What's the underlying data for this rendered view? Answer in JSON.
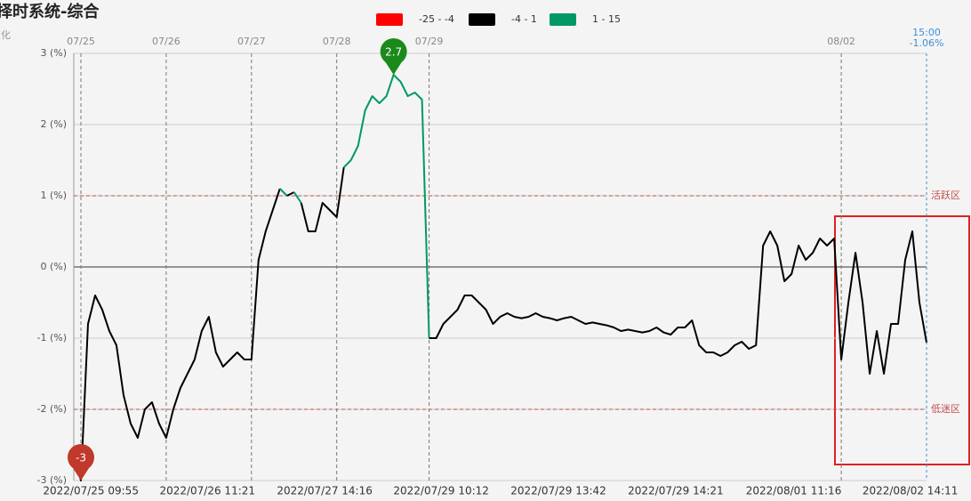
{
  "chart_data": {
    "type": "line",
    "title": "择时系统-综合",
    "ylabel": "变化",
    "legend": [
      {
        "name": "-25 - -4",
        "color": "#ff0000",
        "range": [
          -25,
          -4
        ]
      },
      {
        "name": "-4 - 1",
        "color": "#000000",
        "range": [
          -4,
          1
        ]
      },
      {
        "name": "1 - 15",
        "color": "#009966",
        "range": [
          1,
          15
        ]
      }
    ],
    "values": [
      -2.6,
      -3,
      -0.8,
      -0.4,
      -0.6,
      -0.9,
      -1.1,
      -1.8,
      -2.2,
      -2.4,
      -2.0,
      -1.9,
      -2.2,
      -2.4,
      -2.0,
      -1.7,
      -1.5,
      -1.3,
      -0.9,
      -0.7,
      -1.2,
      -1.4,
      -1.3,
      -1.2,
      -1.3,
      -1.3,
      0.1,
      0.5,
      0.8,
      1.1,
      1.0,
      1.05,
      0.9,
      0.5,
      0.5,
      0.9,
      0.8,
      0.7,
      1.4,
      1.5,
      1.7,
      2.2,
      2.4,
      2.3,
      2.4,
      2.7,
      2.6,
      2.4,
      2.45,
      2.35,
      -1.0,
      -1.0,
      -0.8,
      -0.7,
      -0.6,
      -0.4,
      -0.4,
      -0.5,
      -0.6,
      -0.8,
      -0.7,
      -0.65,
      -0.7,
      -0.72,
      -0.7,
      -0.65,
      -0.7,
      -0.72,
      -0.75,
      -0.72,
      -0.7,
      -0.75,
      -0.8,
      -0.78,
      -0.8,
      -0.82,
      -0.85,
      -0.9,
      -0.88,
      -0.9,
      -0.92,
      -0.9,
      -0.85,
      -0.92,
      -0.95,
      -0.85,
      -0.85,
      -0.75,
      -1.1,
      -1.2,
      -1.2,
      -1.25,
      -1.2,
      -1.1,
      -1.05,
      -1.15,
      -1.1,
      0.3,
      0.5,
      0.3,
      -0.2,
      -0.1,
      0.3,
      0.1,
      0.2,
      0.4,
      0.3,
      0.4,
      -1.3,
      -0.5,
      0.2,
      -0.5,
      -1.5,
      -0.9,
      -1.5,
      -0.8,
      -0.8,
      0.1,
      0.5,
      -0.5,
      -1.06
    ],
    "xlim": [
      0,
      120
    ],
    "xticks": [
      {
        "value": 2.4,
        "label": "2022/07/25 09:55"
      },
      {
        "value": 18.8,
        "label": "2022/07/26 11:21"
      },
      {
        "value": 35.3,
        "label": "2022/07/27 14:16"
      },
      {
        "value": 51.7,
        "label": "2022/07/29 10:12"
      },
      {
        "value": 68.2,
        "label": "2022/07/29 13:42"
      },
      {
        "value": 84.7,
        "label": "2022/07/29 14:21"
      },
      {
        "value": 101.3,
        "label": "2022/08/01 11:16"
      },
      {
        "value": 117.7,
        "label": "2022/08/02 14:11"
      }
    ],
    "day_markers": [
      {
        "value": 1,
        "label": "07/25"
      },
      {
        "value": 13,
        "label": "07/26"
      },
      {
        "value": 25,
        "label": "07/27"
      },
      {
        "value": 37,
        "label": "07/28"
      },
      {
        "value": 50,
        "label": "07/29"
      },
      {
        "value": 108,
        "label": "08/02"
      }
    ],
    "end_marker": {
      "value": 120,
      "time": "15:00",
      "label": "-1.06%"
    },
    "ylim": [
      -3,
      3
    ],
    "yticks": [
      {
        "value": -3,
        "label": "-3 (%)"
      },
      {
        "value": -2,
        "label": "-2 (%)"
      },
      {
        "value": -1,
        "label": "-1 (%)"
      },
      {
        "value": 0,
        "label": "0 (%)"
      },
      {
        "value": 1,
        "label": "1 (%)"
      },
      {
        "value": 2,
        "label": "2 (%)"
      },
      {
        "value": 3,
        "label": "3 (%)"
      }
    ],
    "zones": [
      {
        "value": 1,
        "label": "活跃区"
      },
      {
        "value": -2,
        "label": "低迷区"
      }
    ],
    "max_index": 45,
    "min_index": 1,
    "grid": true
  }
}
